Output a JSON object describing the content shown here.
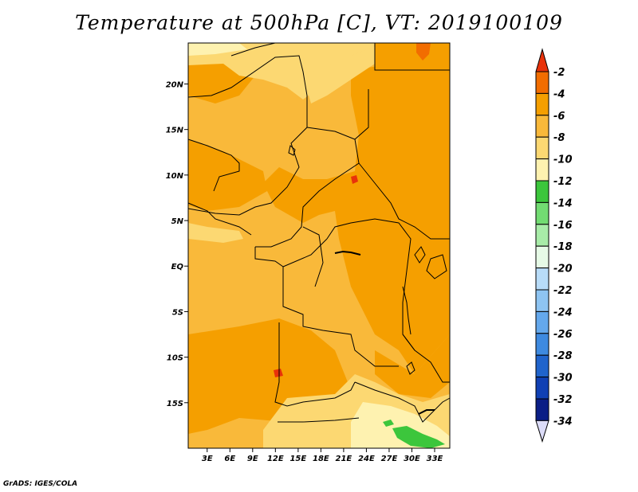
{
  "title": "Temperature at 500hPa [C], VT: 2019100109",
  "credit": "GrADS: IGES/COLA",
  "map": {
    "lat_labels": [
      "20N",
      "15N",
      "10N",
      "5N",
      "EQ",
      "5S",
      "10S",
      "15S"
    ],
    "lat_values": [
      20,
      15,
      10,
      5,
      0,
      -5,
      -10,
      -15
    ],
    "lon_labels": [
      "3E",
      "6E",
      "9E",
      "12E",
      "15E",
      "18E",
      "21E",
      "24E",
      "27E",
      "30E",
      "33E"
    ],
    "lon_values": [
      3,
      6,
      9,
      12,
      15,
      18,
      21,
      24,
      27,
      30,
      33
    ],
    "lon_range": [
      0.5,
      35
    ],
    "lat_range": [
      -20,
      24.5
    ]
  },
  "colorbar": {
    "labels": [
      "-2",
      "-4",
      "-6",
      "-8",
      "-10",
      "-12",
      "-14",
      "-16",
      "-18",
      "-20",
      "-22",
      "-24",
      "-26",
      "-28",
      "-30",
      "-32",
      "-34"
    ],
    "colors": [
      "#e8320a",
      "#f26d00",
      "#f59f00",
      "#f9b93a",
      "#fcd872",
      "#fef2b0",
      "#3cc63c",
      "#72dc72",
      "#a8eca8",
      "#e6fae6",
      "#b8dcf8",
      "#8ec4f2",
      "#64a8ec",
      "#3e8ae0",
      "#2064cc",
      "#1040b4",
      "#0a1e86",
      "#dcdcf8"
    ]
  },
  "field_colors": {
    "warm_2_4": "#e8320a",
    "warm_4_6": "#f59f00",
    "warm_6_8": "#f9b93a",
    "warm_8_10": "#fcd872",
    "warm_10_12": "#fef2b0",
    "cool_12_14": "#3cc63c"
  }
}
